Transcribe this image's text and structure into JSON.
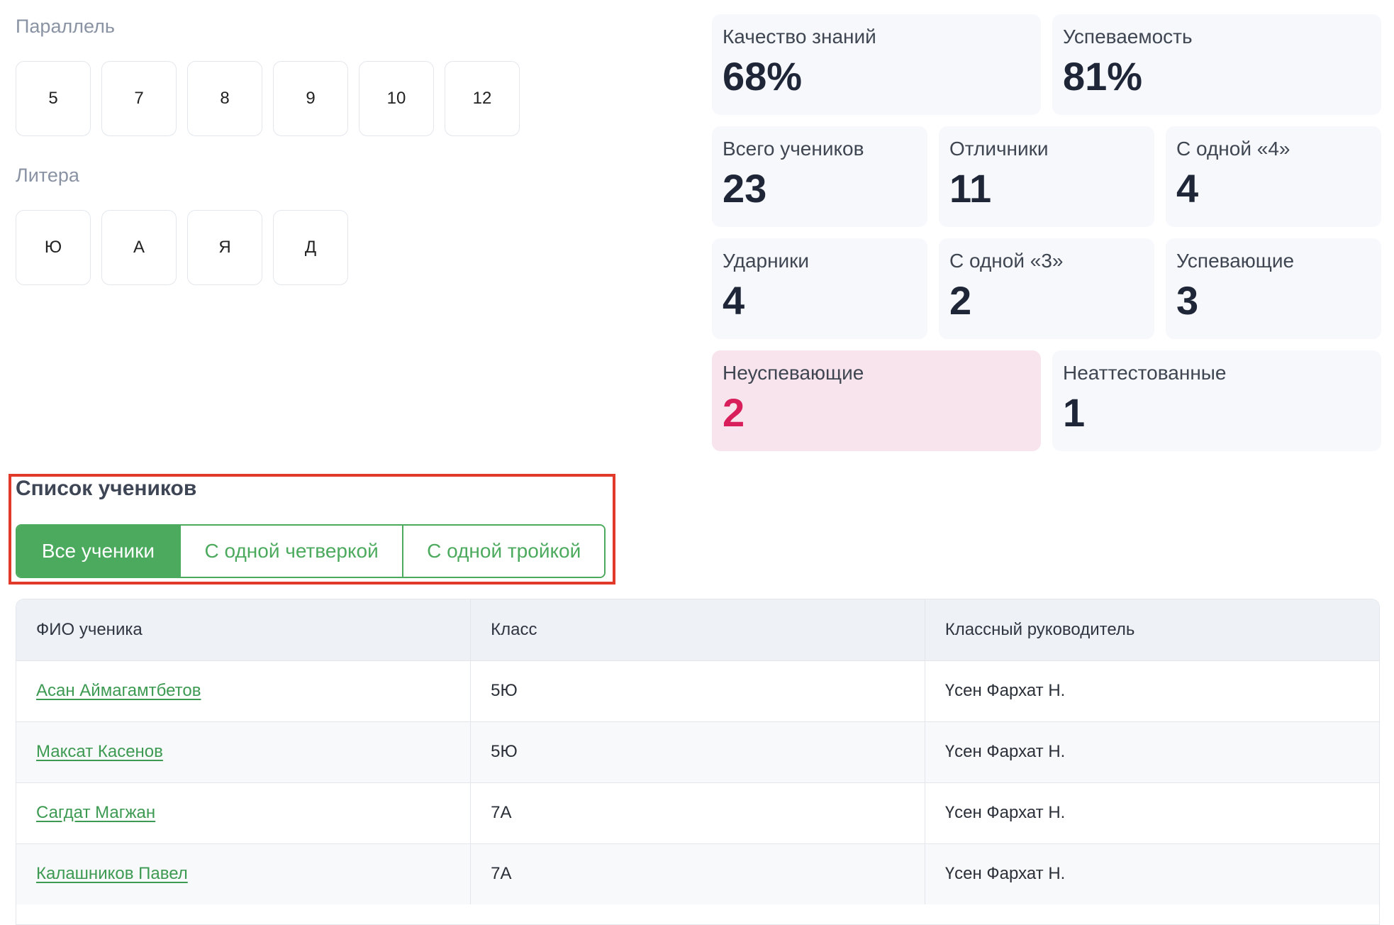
{
  "filters": {
    "parallel_label": "Параллель",
    "parallel_options": [
      "5",
      "7",
      "8",
      "9",
      "10",
      "12"
    ],
    "litera_label": "Литера",
    "litera_options": [
      "Ю",
      "А",
      "Я",
      "Д"
    ]
  },
  "stats": {
    "quality": {
      "label": "Качество знаний",
      "value": "68%"
    },
    "progress": {
      "label": "Успеваемость",
      "value": "81%"
    },
    "total": {
      "label": "Всего учеников",
      "value": "23"
    },
    "excellent": {
      "label": "Отличники",
      "value": "11"
    },
    "one_four": {
      "label": "С одной «4»",
      "value": "4"
    },
    "good": {
      "label": "Ударники",
      "value": "4"
    },
    "one_three": {
      "label": "С одной «3»",
      "value": "2"
    },
    "passing": {
      "label": "Успевающие",
      "value": "3"
    },
    "failing": {
      "label": "Неуспевающие",
      "value": "2"
    },
    "unattested": {
      "label": "Неаттестованные",
      "value": "1"
    }
  },
  "student_list": {
    "title": "Список учеников",
    "tabs": [
      "Все ученики",
      "С одной четверкой",
      "С одной тройкой"
    ],
    "active_tab": "Все ученики"
  },
  "table": {
    "columns": [
      "ФИО ученика",
      "Класс",
      "Классный руководитель"
    ],
    "rows": [
      {
        "name": "Асан Аймагамтбетов",
        "class": "5Ю",
        "teacher": "Үсен Фархат Н."
      },
      {
        "name": "Максат Касенов",
        "class": "5Ю",
        "teacher": "Үсен Фархат Н."
      },
      {
        "name": "Сагдат Магжан",
        "class": "7А",
        "teacher": "Үсен Фархат Н."
      },
      {
        "name": "Калашников Павел",
        "class": "7А",
        "teacher": "Үсен Фархат Н."
      }
    ]
  },
  "colors": {
    "accent": "#4caa5e",
    "alert": "#d81e5b",
    "highlight": "#e23a2a"
  }
}
